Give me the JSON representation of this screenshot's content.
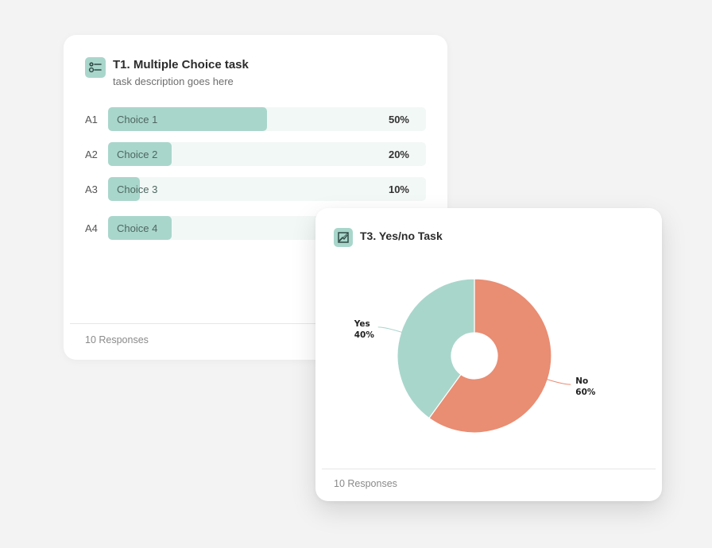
{
  "multiple_choice": {
    "title": "T1. Multiple Choice task",
    "description": "task description goes here",
    "rows": [
      {
        "label": "A1",
        "choice": "Choice 1",
        "percent_text": "50%",
        "fraction": 0.5
      },
      {
        "label": "A2",
        "choice": "Choice 2",
        "percent_text": "20%",
        "fraction": 0.2
      },
      {
        "label": "A3",
        "choice": "Choice 3",
        "percent_text": "10%",
        "fraction": 0.1
      },
      {
        "label": "A4",
        "choice": "Choice 4",
        "percent_text": "",
        "fraction": 0.2
      }
    ],
    "responses": "10 Responses",
    "icon": "multiple-choice-icon"
  },
  "yes_no": {
    "title": "T3. Yes/no Task",
    "responses": "10 Responses",
    "icon": "image-chart-icon",
    "chart_data": {
      "type": "pie",
      "slices": [
        {
          "name": "No",
          "value": 60,
          "label": "60%",
          "color": "#e98d73"
        },
        {
          "name": "Yes",
          "value": 40,
          "label": "40%",
          "color": "#a9d6cb"
        }
      ]
    }
  },
  "colors": {
    "accent": "#a9d6cb",
    "track": "#f2f8f6",
    "no_slice": "#e98d73"
  }
}
